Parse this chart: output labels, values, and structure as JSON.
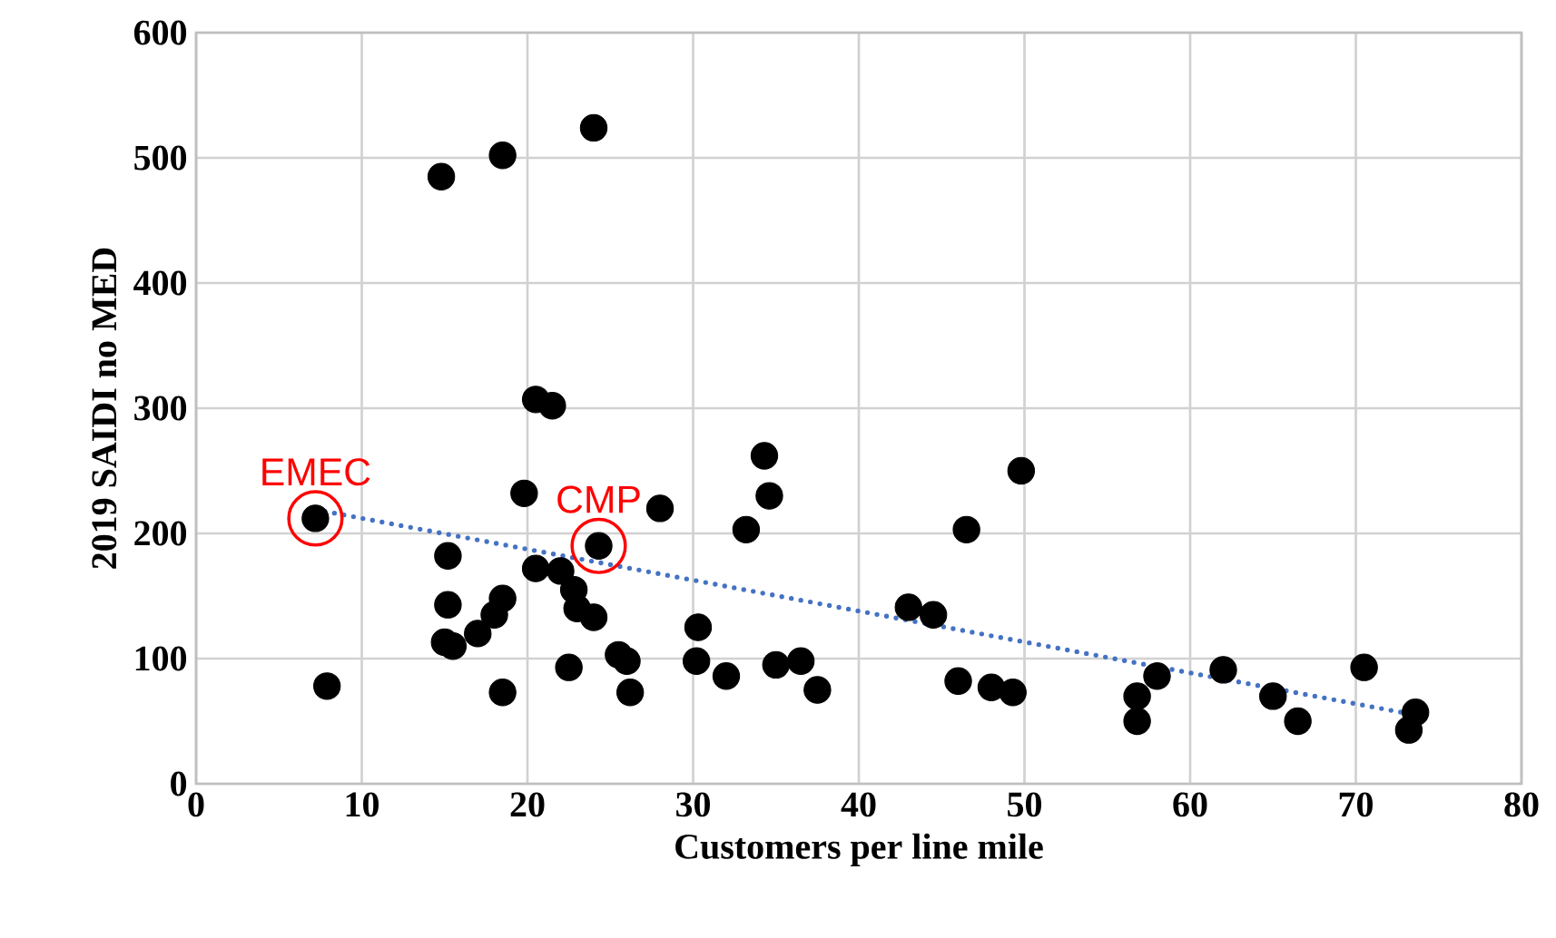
{
  "chart_data": {
    "type": "scatter",
    "xlabel": "Customers per line mile",
    "ylabel": "2019 SAIDI no MED",
    "xlim": [
      0,
      80
    ],
    "ylim": [
      0,
      600
    ],
    "xticks": [
      0,
      10,
      20,
      30,
      40,
      50,
      60,
      70,
      80
    ],
    "yticks": [
      0,
      100,
      200,
      300,
      400,
      500,
      600
    ],
    "grid": true,
    "series": [
      {
        "color": "#000000",
        "marker": "circle",
        "x": [
          7.2,
          7.9,
          14.8,
          18.5,
          24,
          15,
          15.5,
          15.2,
          15.2,
          17,
          18,
          18.5,
          18.5,
          19.8,
          20.5,
          20.5,
          21.5,
          22,
          22.5,
          22.8,
          23,
          24,
          24.3,
          25.5,
          26,
          26.2,
          28,
          30.2,
          30.3,
          32,
          33.2,
          34.3,
          34.6,
          35,
          36.5,
          37.5,
          43,
          44.5,
          46,
          46.5,
          48,
          49.3,
          49.8,
          56.8,
          56.8,
          58,
          62,
          65,
          66.5,
          70.5,
          73.2,
          73.6
        ],
        "values": [
          212,
          78,
          485,
          502,
          524,
          113,
          110,
          182,
          143,
          120,
          135,
          148,
          73,
          232,
          307,
          172,
          302,
          170,
          93,
          155,
          140,
          133,
          190,
          103,
          98,
          73,
          220,
          98,
          125,
          86,
          203,
          262,
          230,
          95,
          98,
          75,
          141,
          135,
          82,
          203,
          77,
          73,
          250,
          70,
          50,
          86,
          91,
          70,
          50,
          93,
          43,
          57
        ]
      },
      {
        "type": "line",
        "color": "#4472c4",
        "line_style": "dotted",
        "marker": "none",
        "x": [
          7.2,
          73.6
        ],
        "values": [
          219,
          55
        ]
      }
    ],
    "annotations": [
      {
        "text": "EMEC",
        "x": 7.2,
        "y": 212
      },
      {
        "text": "CMP",
        "x": 24.3,
        "y": 190
      }
    ]
  }
}
